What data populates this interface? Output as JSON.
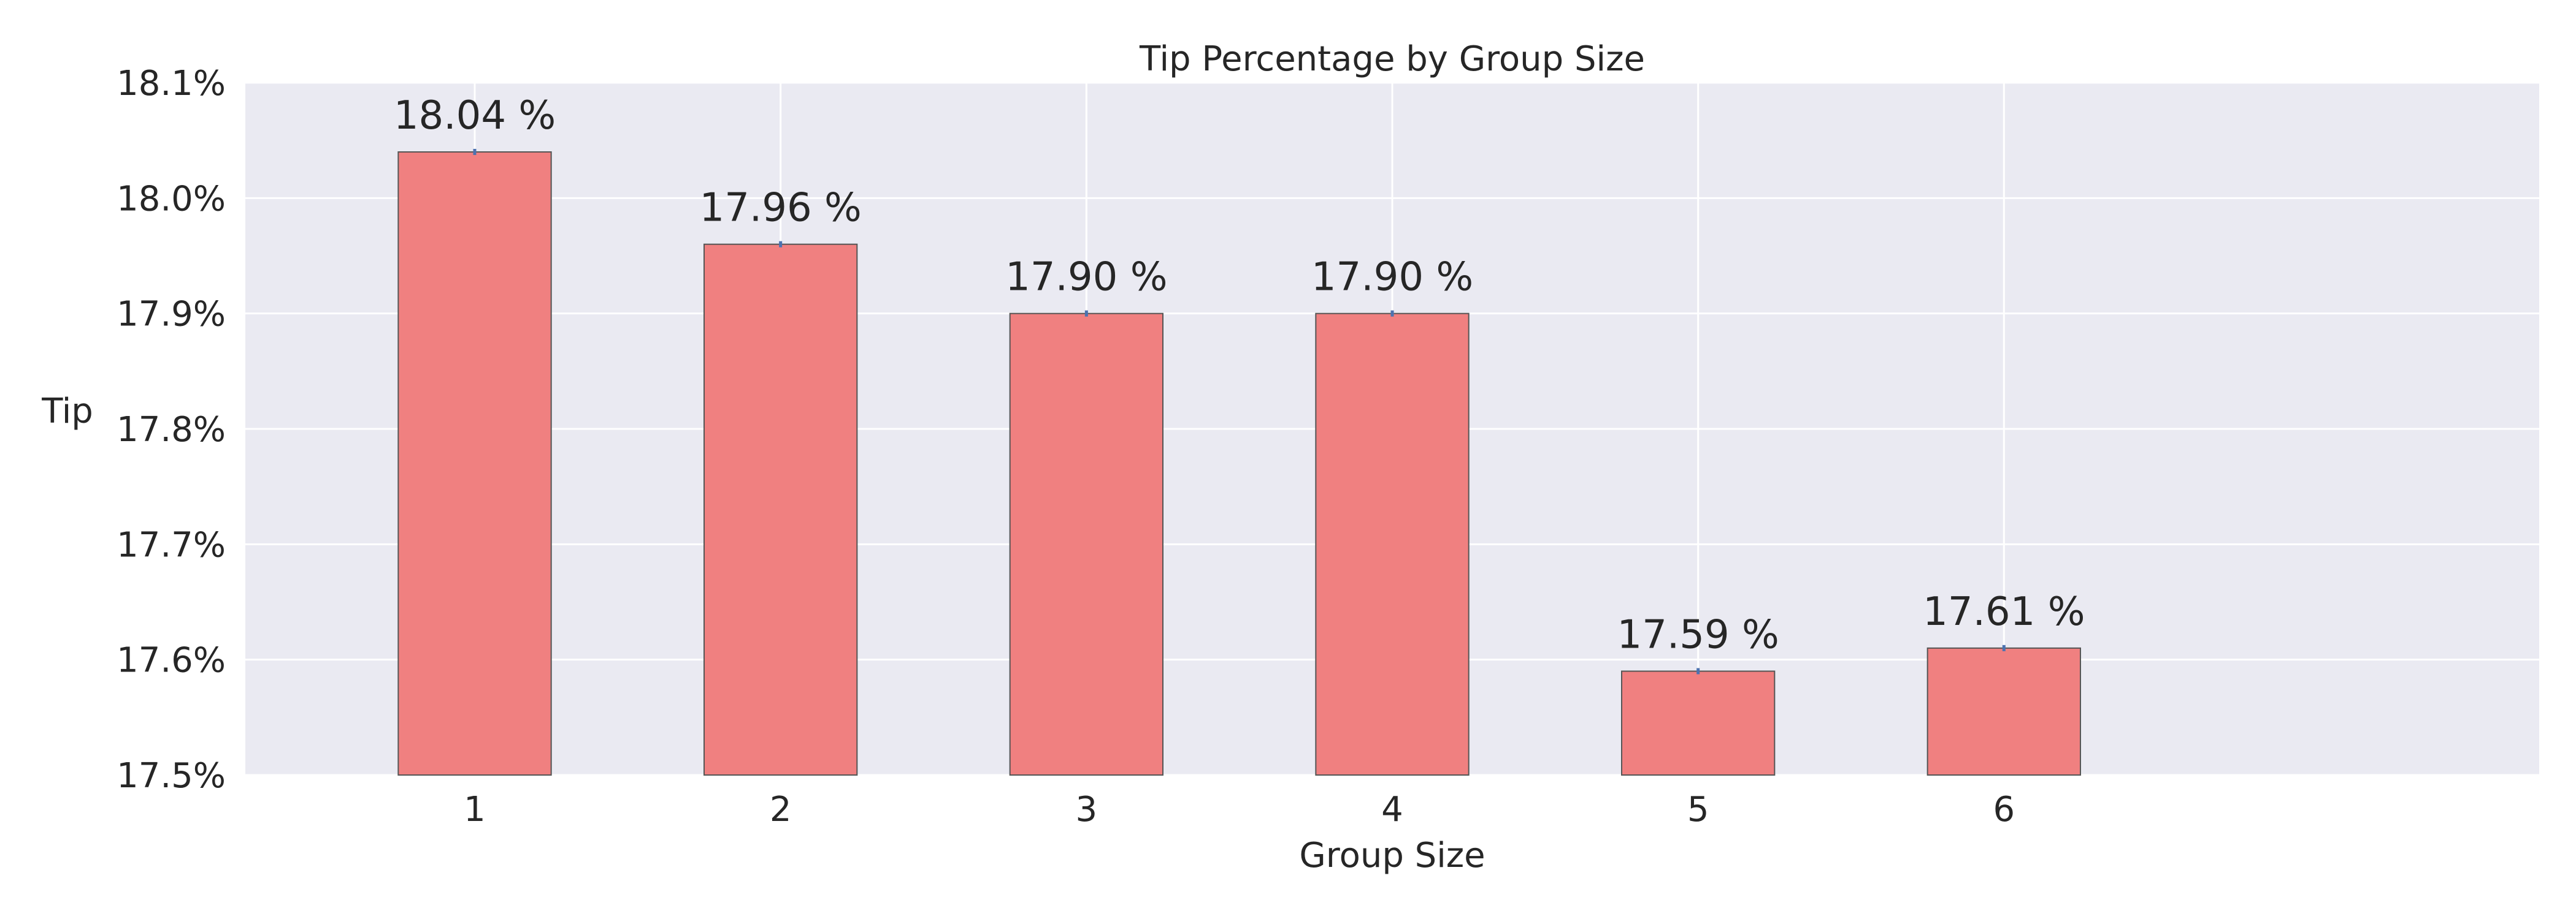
{
  "chart_data": {
    "type": "bar",
    "title": "Tip Percentage by Group Size",
    "xlabel": "Group Size",
    "ylabel": "Tip",
    "categories": [
      "1",
      "2",
      "3",
      "4",
      "5",
      "6"
    ],
    "values": [
      18.04,
      17.96,
      17.9,
      17.9,
      17.59,
      17.61
    ],
    "data_labels": [
      "18.04 %",
      "17.96 %",
      "17.90 %",
      "17.90 %",
      "17.59 %",
      "17.61 %"
    ],
    "ylim": [
      17.5,
      18.1
    ],
    "yticks": [
      17.5,
      17.6,
      17.7,
      17.8,
      17.9,
      18.0,
      18.1
    ],
    "ytick_labels": [
      "17.5%",
      "17.6%",
      "17.7%",
      "17.8%",
      "17.9%",
      "18.0%",
      "18.1%"
    ],
    "grid": true,
    "bar_color": "#f08080",
    "bar_edge_color": "#555555",
    "plot_background": "#eaeaf2",
    "grid_color": "#ffffff",
    "error_color": "#4c72b0"
  }
}
